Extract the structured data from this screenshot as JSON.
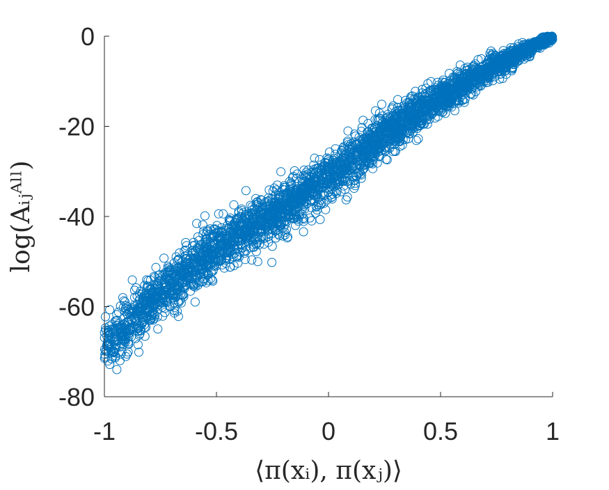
{
  "chart_data": {
    "type": "scatter",
    "title": "",
    "xlabel": "⟨π(xᵢ), π(xⱼ)⟩",
    "ylabel": "log(Aᵢⱼᴬˡˡ)",
    "xlim": [
      -1,
      1
    ],
    "ylim": [
      -80,
      0
    ],
    "xticks": [
      -1,
      -0.5,
      0,
      0.5,
      1
    ],
    "xtick_labels": [
      "-1",
      "-0.5",
      "0",
      "0.5",
      "1"
    ],
    "yticks": [
      0,
      -20,
      -40,
      -60,
      -80
    ],
    "ytick_labels": [
      "0",
      "-20",
      "-40",
      "-60",
      "-80"
    ],
    "grid": false,
    "marker": "open-circle",
    "series_color": "#0072bd",
    "trend": {
      "x": [
        -1,
        -0.75,
        -0.5,
        -0.25,
        0,
        0.25,
        0.5,
        0.75,
        1
      ],
      "y": [
        -69.5,
        -57,
        -47,
        -39.5,
        -31.5,
        -22,
        -13.5,
        -6.5,
        0
      ]
    },
    "spread": {
      "x": [
        -1,
        -0.5,
        0,
        0.5,
        1
      ],
      "sd": [
        2.6,
        2.9,
        2.6,
        2.0,
        0.4
      ]
    },
    "point_count": 3500
  }
}
